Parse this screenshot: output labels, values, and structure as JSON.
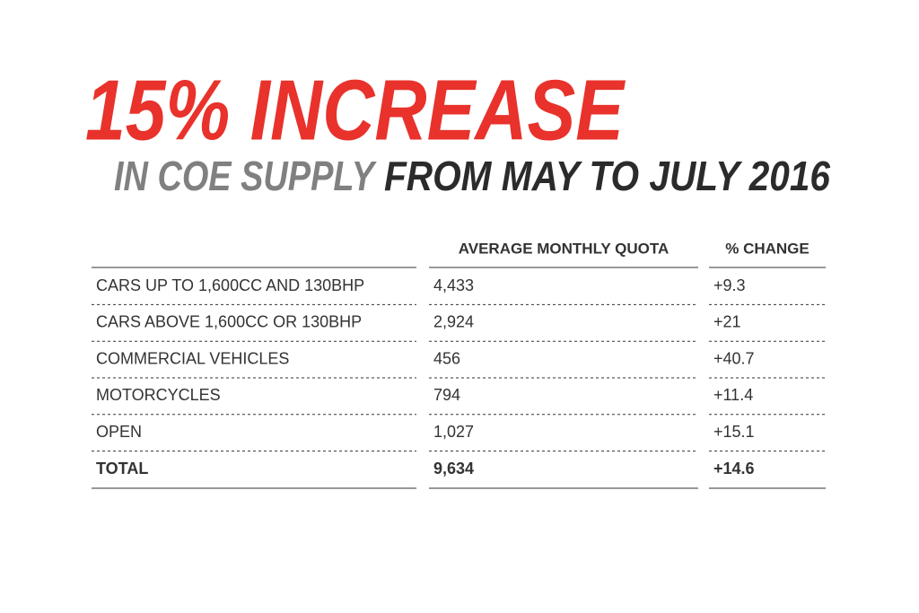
{
  "header": {
    "title": "15% INCREASE",
    "subtitle_lead": "IN COE SUPPLY",
    "subtitle_rest": "FROM MAY TO JULY 2016"
  },
  "table": {
    "columns": [
      "AVERAGE MONTHLY QUOTA",
      "% CHANGE"
    ],
    "rows": [
      [
        "CARS UP TO 1,600CC AND 130BHP",
        "4,433",
        "+9.3"
      ],
      [
        "CARS ABOVE 1,600CC OR 130BHP",
        "2,924",
        "+21"
      ],
      [
        "COMMERCIAL VEHICLES",
        "456",
        "+40.7"
      ],
      [
        "MOTORCYCLES",
        "794",
        "+11.4"
      ],
      [
        "OPEN",
        "1,027",
        "+15.1"
      ]
    ],
    "total": [
      "TOTAL",
      "9,634",
      "+14.6"
    ]
  }
}
